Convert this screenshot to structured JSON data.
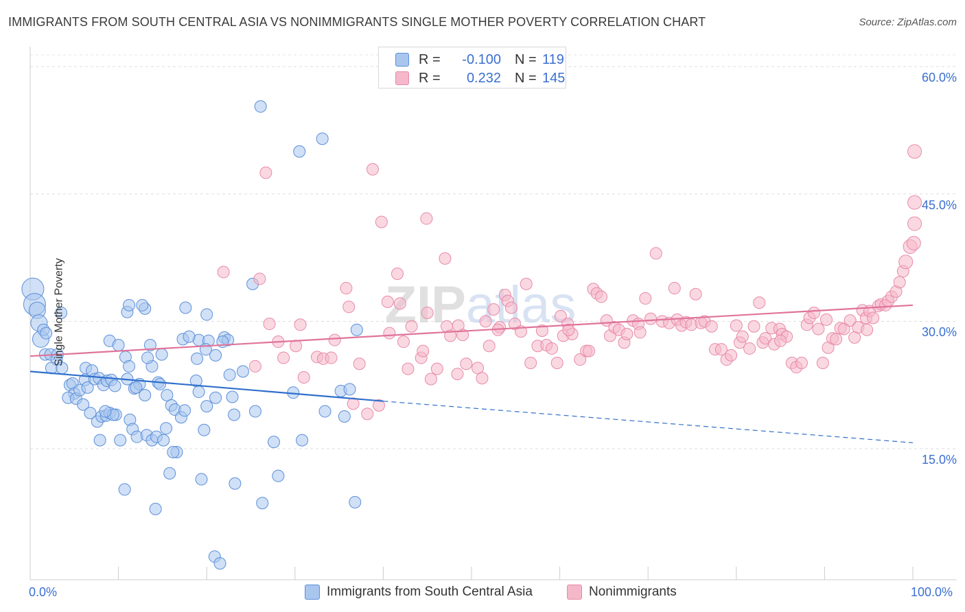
{
  "title": "IMMIGRANTS FROM SOUTH CENTRAL ASIA VS NONIMMIGRANTS SINGLE MOTHER POVERTY CORRELATION CHART",
  "source": "Source: ZipAtlas.com",
  "watermark": "ZIPatlas",
  "colors": {
    "blue_fill": "#a9c6ef",
    "blue_stroke": "#5b8fd9",
    "blue_line": "#2f6fcc",
    "pink_fill": "#f5b8cb",
    "pink_stroke": "#e78aa8",
    "pink_line": "#e0739a",
    "axis_text": "#3b6fd0"
  },
  "legend_top": {
    "rows": [
      {
        "r_label": "R =",
        "r_value": "-0.100",
        "n_label": "N =",
        "n_value": "119"
      },
      {
        "r_label": "R =",
        "r_value": "0.232",
        "n_label": "N =",
        "n_value": "145"
      }
    ]
  },
  "chart_data": {
    "type": "scatter",
    "xlabel": "",
    "ylabel": "Single Mother Poverty",
    "xlim": [
      0,
      100
    ],
    "ylim": [
      0,
      60
    ],
    "x_tick_labels": [
      "0.0%",
      "100.0%"
    ],
    "y_tick_labels": [
      "15.0%",
      "30.0%",
      "45.0%",
      "60.0%"
    ],
    "y_ticks": [
      15,
      30,
      45,
      60
    ],
    "grid": true,
    "legend_position": "bottom",
    "series": [
      {
        "name": "Immigrants from South Central Asia",
        "color": "#a9c6ef",
        "trend": {
          "x0": 0,
          "y0": 24.1,
          "x1": 40,
          "y1": 20.6,
          "dash_to_x": 100,
          "dash_to_y": 15.7
        },
        "points": [
          [
            0.3,
            33.8
          ],
          [
            0.5,
            32.0
          ],
          [
            0.8,
            31.3
          ],
          [
            1.0,
            29.8
          ],
          [
            1.2,
            27.9
          ],
          [
            1.5,
            29.0
          ],
          [
            1.8,
            28.6
          ],
          [
            3.5,
            31.0
          ],
          [
            1.7,
            26.1
          ],
          [
            2.3,
            26.1
          ],
          [
            3.1,
            26.1
          ],
          [
            3.0,
            25.5
          ],
          [
            2.4,
            24.5
          ],
          [
            3.6,
            24.5
          ],
          [
            4.5,
            22.5
          ],
          [
            4.8,
            22.7
          ],
          [
            5.0,
            21.5
          ],
          [
            4.3,
            21.0
          ],
          [
            5.2,
            20.9
          ],
          [
            5.6,
            21.9
          ],
          [
            6.2,
            23.1
          ],
          [
            6.5,
            22.2
          ],
          [
            6.3,
            24.5
          ],
          [
            7.0,
            24.2
          ],
          [
            7.3,
            23.2
          ],
          [
            7.8,
            23.3
          ],
          [
            8.3,
            22.5
          ],
          [
            8.7,
            23.0
          ],
          [
            9.2,
            23.1
          ],
          [
            9.6,
            22.4
          ],
          [
            6.0,
            20.2
          ],
          [
            6.8,
            19.2
          ],
          [
            7.6,
            18.2
          ],
          [
            8.1,
            18.8
          ],
          [
            8.6,
            18.9
          ],
          [
            9.0,
            19.2
          ],
          [
            9.7,
            19.0
          ],
          [
            7.9,
            16.0
          ],
          [
            10.2,
            16.0
          ],
          [
            11.3,
            18.4
          ],
          [
            11.6,
            17.3
          ],
          [
            12.1,
            16.4
          ],
          [
            13.2,
            16.6
          ],
          [
            13.8,
            16.0
          ],
          [
            14.3,
            16.4
          ],
          [
            15.1,
            16.0
          ],
          [
            15.4,
            17.4
          ],
          [
            11.8,
            22.1
          ],
          [
            13.0,
            21.3
          ],
          [
            13.8,
            24.7
          ],
          [
            14.5,
            22.8
          ],
          [
            14.7,
            22.6
          ],
          [
            15.5,
            21.3
          ],
          [
            16.0,
            20.1
          ],
          [
            16.4,
            19.6
          ],
          [
            17.1,
            18.7
          ],
          [
            17.5,
            19.5
          ],
          [
            16.6,
            14.6
          ],
          [
            16.2,
            14.6
          ],
          [
            11.0,
            23.2
          ],
          [
            12.4,
            22.6
          ],
          [
            13.3,
            25.7
          ],
          [
            14.9,
            26.1
          ],
          [
            10.8,
            25.8
          ],
          [
            11.2,
            24.7
          ],
          [
            9.0,
            27.7
          ],
          [
            11.0,
            31.1
          ],
          [
            11.2,
            31.9
          ],
          [
            13.0,
            31.5
          ],
          [
            12.7,
            31.9
          ],
          [
            17.6,
            31.6
          ],
          [
            20.0,
            30.8
          ],
          [
            17.3,
            27.9
          ],
          [
            19.1,
            27.8
          ],
          [
            20.2,
            27.7
          ],
          [
            21.0,
            26.0
          ],
          [
            19.9,
            26.7
          ],
          [
            18.9,
            25.6
          ],
          [
            22.0,
            28.1
          ],
          [
            22.4,
            27.8
          ],
          [
            18.8,
            23.0
          ],
          [
            19.1,
            21.7
          ],
          [
            20.0,
            20.0
          ],
          [
            21.0,
            21.0
          ],
          [
            22.9,
            21.1
          ],
          [
            23.1,
            19.0
          ],
          [
            24.1,
            24.1
          ],
          [
            22.6,
            23.7
          ],
          [
            25.5,
            19.4
          ],
          [
            19.7,
            17.2
          ],
          [
            25.2,
            34.4
          ],
          [
            26.3,
            8.6
          ],
          [
            27.6,
            15.8
          ],
          [
            28.1,
            11.8
          ],
          [
            29.8,
            21.6
          ],
          [
            30.8,
            16.0
          ],
          [
            33.4,
            19.4
          ],
          [
            35.2,
            21.8
          ],
          [
            36.2,
            22.0
          ],
          [
            36.8,
            8.7
          ],
          [
            35.6,
            18.8
          ],
          [
            37.0,
            29.0
          ],
          [
            10.7,
            10.2
          ],
          [
            14.2,
            7.9
          ],
          [
            15.8,
            12.1
          ],
          [
            19.4,
            11.4
          ],
          [
            23.2,
            10.9
          ],
          [
            20.9,
            2.3
          ],
          [
            21.5,
            1.5
          ],
          [
            26.1,
            55.3
          ],
          [
            30.5,
            50.0
          ],
          [
            33.1,
            51.5
          ],
          [
            21.8,
            27.6
          ],
          [
            10.0,
            27.2
          ],
          [
            12.0,
            22.2
          ],
          [
            9.4,
            19.0
          ],
          [
            8.5,
            19.4
          ],
          [
            13.6,
            27.2
          ],
          [
            18.0,
            28.2
          ]
        ]
      },
      {
        "name": "Nonimmigrants",
        "color": "#f5b8cb",
        "trend": {
          "x0": 0,
          "y0": 25.9,
          "x1": 100,
          "y1": 31.9
        },
        "points": [
          [
            21.9,
            35.8
          ],
          [
            25.5,
            24.7
          ],
          [
            26.0,
            35.0
          ],
          [
            26.7,
            47.5
          ],
          [
            27.1,
            29.7
          ],
          [
            28.1,
            27.6
          ],
          [
            28.7,
            25.7
          ],
          [
            30.1,
            27.1
          ],
          [
            30.6,
            29.6
          ],
          [
            31.0,
            23.4
          ],
          [
            32.5,
            25.8
          ],
          [
            33.2,
            25.6
          ],
          [
            34.1,
            25.7
          ],
          [
            35.8,
            33.9
          ],
          [
            34.5,
            27.8
          ],
          [
            36.1,
            31.7
          ],
          [
            36.6,
            20.3
          ],
          [
            37.3,
            25.0
          ],
          [
            38.2,
            19.1
          ],
          [
            39.5,
            20.1
          ],
          [
            38.8,
            47.9
          ],
          [
            39.8,
            41.7
          ],
          [
            40.7,
            28.6
          ],
          [
            41.6,
            35.6
          ],
          [
            41.9,
            32.1
          ],
          [
            42.3,
            27.6
          ],
          [
            42.8,
            24.4
          ],
          [
            43.2,
            29.4
          ],
          [
            44.3,
            25.7
          ],
          [
            44.5,
            26.5
          ],
          [
            44.9,
            42.1
          ],
          [
            45.4,
            23.2
          ],
          [
            46.1,
            24.4
          ],
          [
            47.0,
            37.4
          ],
          [
            47.2,
            29.4
          ],
          [
            47.6,
            28.3
          ],
          [
            48.4,
            23.8
          ],
          [
            49.0,
            28.4
          ],
          [
            49.4,
            25.0
          ],
          [
            50.7,
            24.5
          ],
          [
            51.2,
            23.3
          ],
          [
            51.6,
            30.0
          ],
          [
            52.0,
            27.1
          ],
          [
            52.5,
            31.4
          ],
          [
            53.2,
            29.3
          ],
          [
            53.8,
            33.1
          ],
          [
            54.1,
            32.4
          ],
          [
            54.5,
            31.6
          ],
          [
            54.9,
            29.7
          ],
          [
            55.6,
            28.8
          ],
          [
            56.2,
            34.4
          ],
          [
            56.7,
            25.1
          ],
          [
            57.5,
            27.1
          ],
          [
            58.0,
            28.9
          ],
          [
            58.5,
            27.2
          ],
          [
            59.1,
            26.8
          ],
          [
            59.7,
            25.1
          ],
          [
            60.1,
            30.6
          ],
          [
            60.4,
            28.3
          ],
          [
            60.9,
            29.7
          ],
          [
            61.4,
            28.5
          ],
          [
            62.3,
            25.5
          ],
          [
            63.0,
            26.5
          ],
          [
            63.3,
            26.5
          ],
          [
            63.8,
            33.8
          ],
          [
            64.2,
            33.3
          ],
          [
            64.7,
            32.9
          ],
          [
            65.3,
            30.1
          ],
          [
            65.7,
            28.3
          ],
          [
            66.2,
            29.3
          ],
          [
            66.7,
            29.0
          ],
          [
            67.3,
            27.5
          ],
          [
            67.6,
            28.5
          ],
          [
            68.3,
            30.1
          ],
          [
            68.9,
            29.7
          ],
          [
            69.1,
            28.7
          ],
          [
            69.7,
            32.7
          ],
          [
            70.3,
            30.3
          ],
          [
            70.9,
            38.0
          ],
          [
            71.6,
            30.0
          ],
          [
            72.4,
            29.8
          ],
          [
            73.0,
            33.9
          ],
          [
            73.3,
            30.2
          ],
          [
            73.8,
            29.5
          ],
          [
            74.3,
            29.9
          ],
          [
            74.9,
            29.6
          ],
          [
            75.4,
            33.2
          ],
          [
            76.0,
            29.8
          ],
          [
            76.4,
            30.0
          ],
          [
            77.2,
            29.4
          ],
          [
            77.6,
            26.7
          ],
          [
            78.3,
            26.7
          ],
          [
            78.9,
            25.5
          ],
          [
            79.4,
            26.0
          ],
          [
            80.0,
            29.5
          ],
          [
            80.4,
            27.5
          ],
          [
            80.7,
            28.2
          ],
          [
            81.5,
            26.8
          ],
          [
            82.0,
            29.4
          ],
          [
            82.6,
            32.2
          ],
          [
            83.0,
            27.5
          ],
          [
            83.3,
            28.0
          ],
          [
            84.0,
            29.2
          ],
          [
            84.3,
            27.3
          ],
          [
            84.9,
            29.1
          ],
          [
            85.2,
            28.5
          ],
          [
            85.7,
            28.2
          ],
          [
            86.3,
            25.1
          ],
          [
            86.8,
            24.6
          ],
          [
            87.4,
            25.1
          ],
          [
            88.0,
            29.6
          ],
          [
            88.3,
            30.4
          ],
          [
            88.8,
            31.0
          ],
          [
            89.3,
            29.1
          ],
          [
            89.8,
            25.1
          ],
          [
            90.4,
            26.9
          ],
          [
            90.9,
            28.0
          ],
          [
            91.3,
            27.9
          ],
          [
            91.8,
            29.2
          ],
          [
            92.2,
            29.1
          ],
          [
            92.9,
            30.1
          ],
          [
            93.4,
            28.1
          ],
          [
            93.8,
            29.3
          ],
          [
            94.3,
            31.3
          ],
          [
            94.7,
            30.4
          ],
          [
            95.1,
            31.2
          ],
          [
            95.5,
            30.4
          ],
          [
            96.1,
            31.8
          ],
          [
            96.4,
            32.0
          ],
          [
            96.9,
            31.9
          ],
          [
            97.2,
            32.4
          ],
          [
            97.6,
            32.9
          ],
          [
            98.1,
            33.5
          ],
          [
            98.5,
            34.6
          ],
          [
            98.9,
            35.9
          ],
          [
            99.2,
            37.0
          ],
          [
            99.7,
            38.8
          ],
          [
            100.1,
            39.2
          ],
          [
            100.7,
            41.5
          ],
          [
            101.0,
            44.0
          ],
          [
            101.5,
            50.0
          ],
          [
            94.8,
            29.0
          ],
          [
            90.2,
            30.2
          ],
          [
            85.0,
            27.7
          ],
          [
            61.0,
            29.0
          ],
          [
            53.0,
            29.0
          ],
          [
            48.5,
            29.5
          ],
          [
            45.0,
            31.0
          ],
          [
            40.5,
            32.3
          ]
        ]
      }
    ]
  },
  "bottom_legend": {
    "items": [
      "Immigrants from South Central Asia",
      "Nonimmigrants"
    ]
  }
}
